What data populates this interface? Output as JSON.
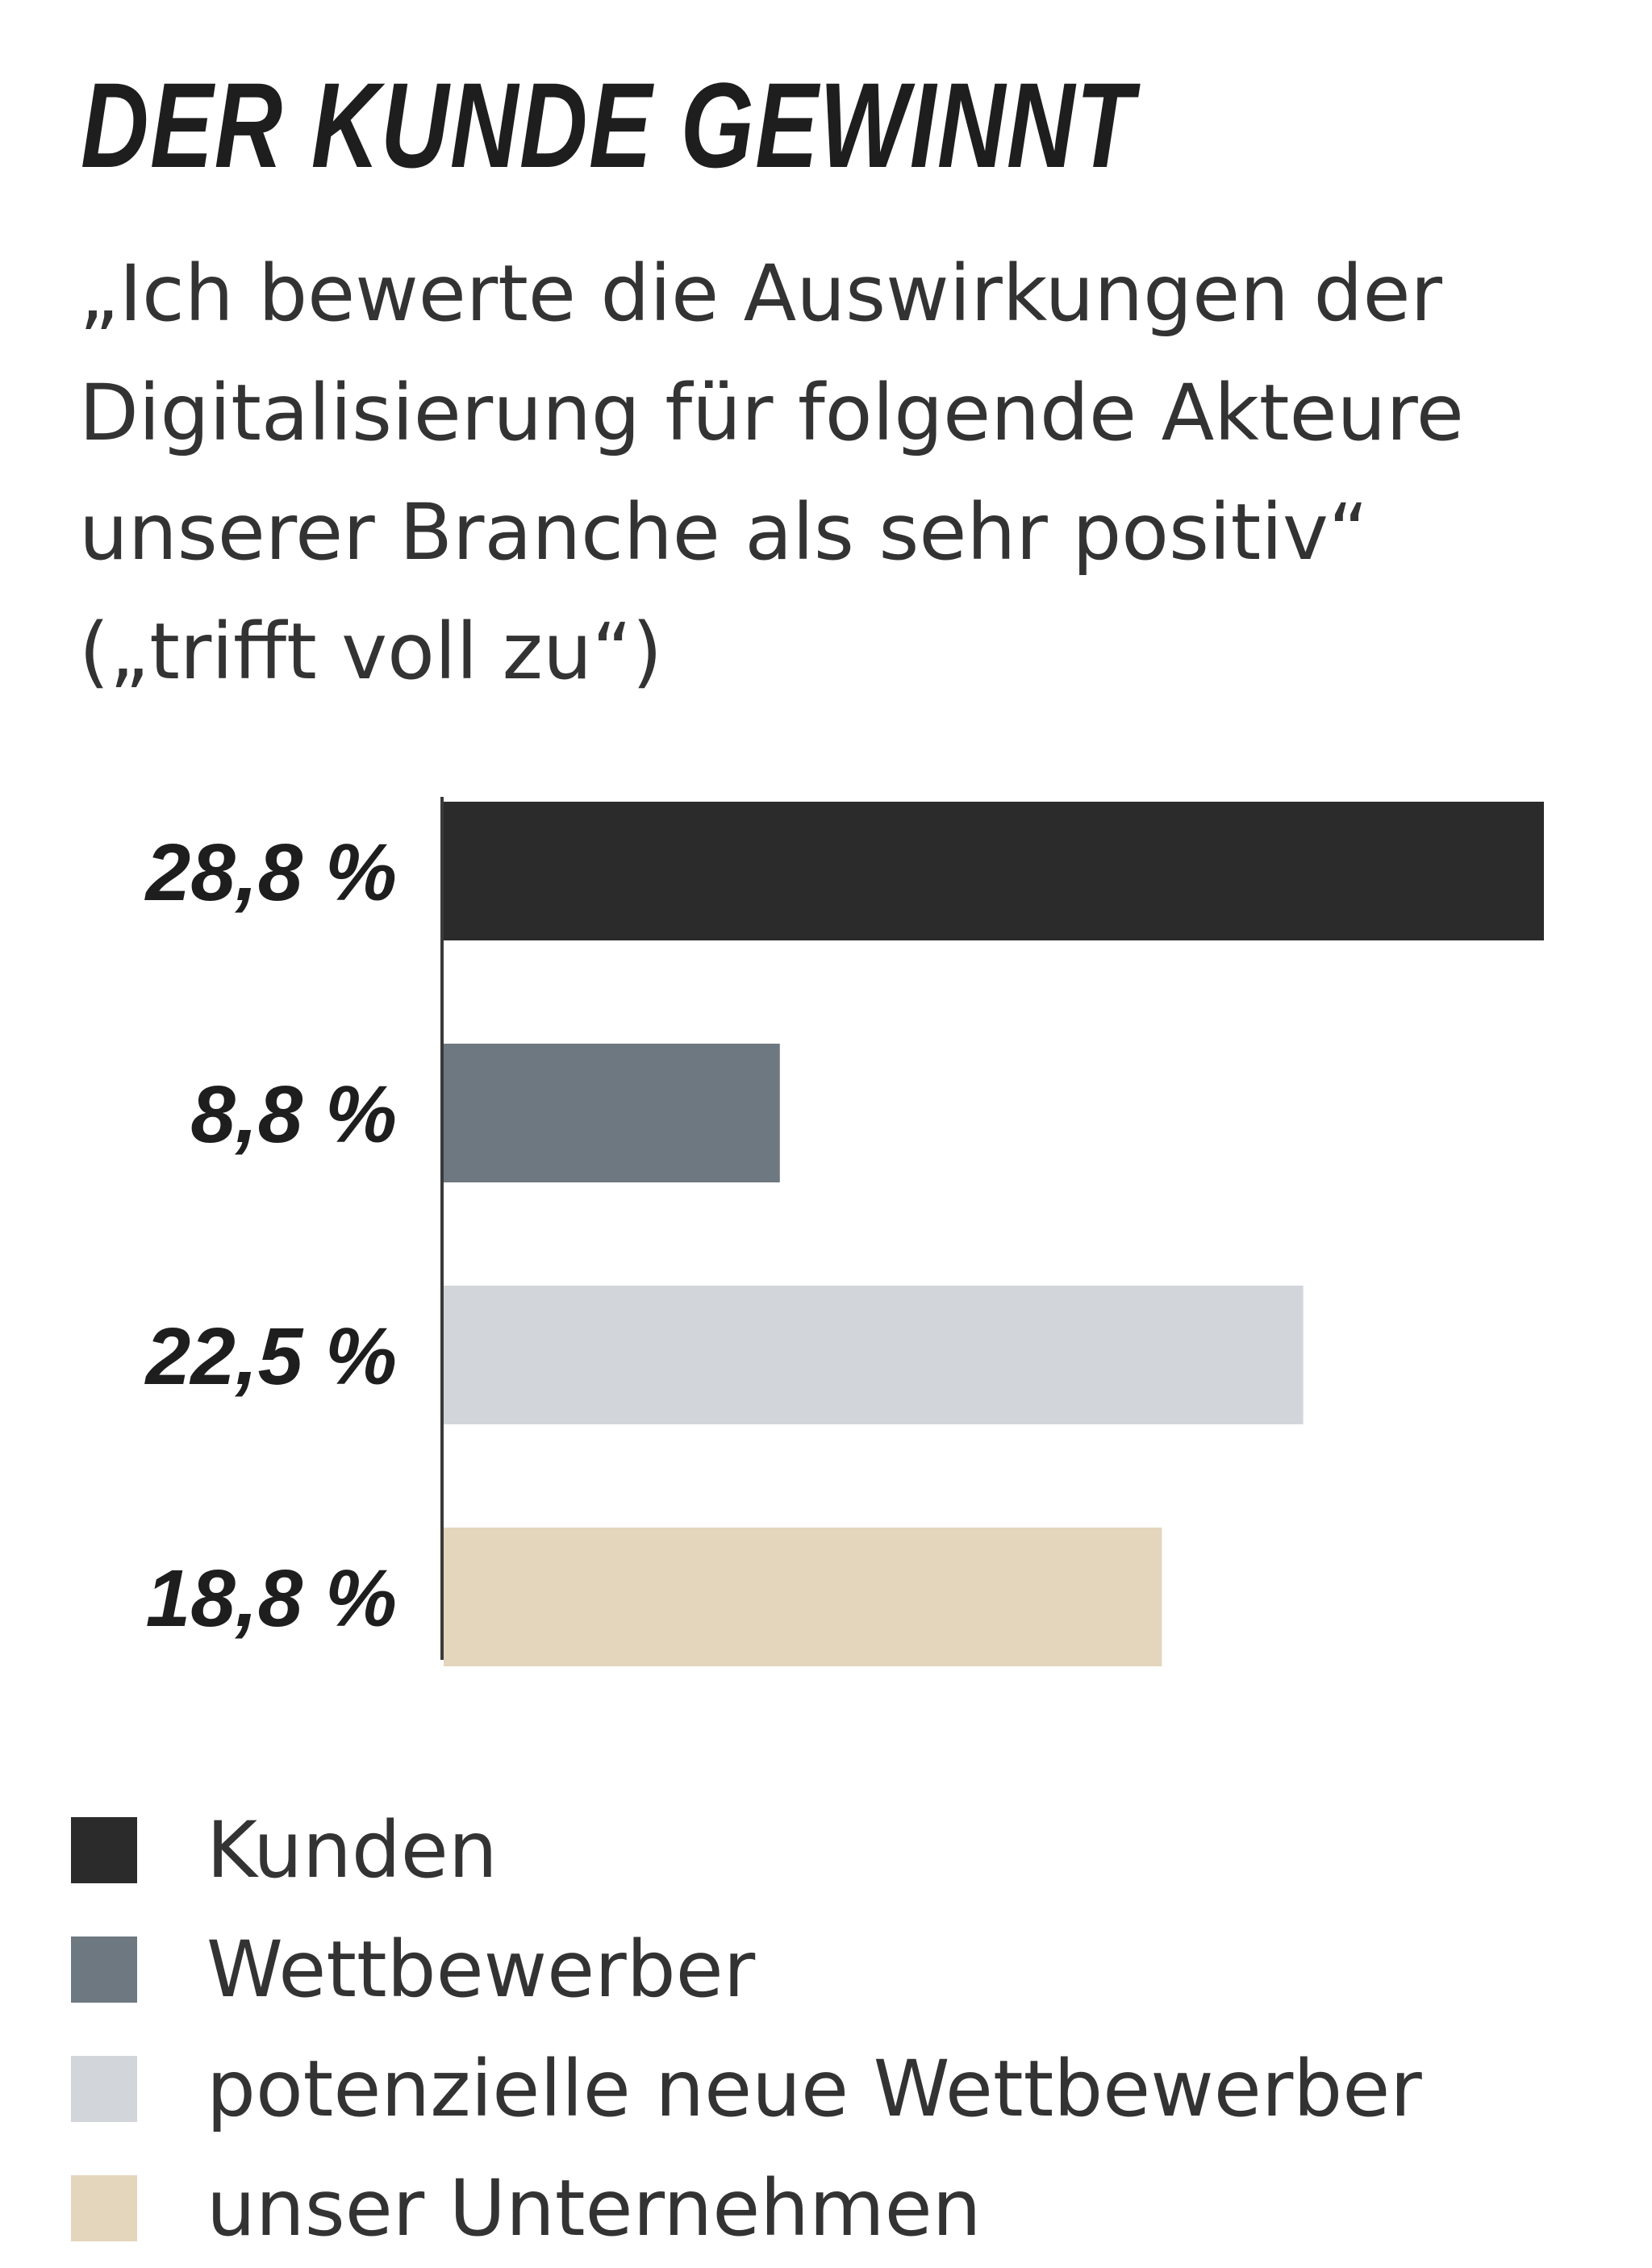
{
  "title": "DER KUNDE GEWINNT",
  "subtitle_lines": [
    "„Ich bewerte die Auswirkungen der",
    "Digitalisierung für folgende Akteure",
    "unserer Branche als sehr positiv“",
    "(„trifft voll zu“)"
  ],
  "colors": {
    "kunden": "#2b2b2b",
    "wettbewerber": "#6e7881",
    "potenzielle": "#d2d6da",
    "unternehmen": "#e3d6bd",
    "axis": "#3a3a3a"
  },
  "legend": [
    {
      "label": "Kunden",
      "color": "#2b2b2b"
    },
    {
      "label": "Wettbewerber",
      "color": "#6e7881"
    },
    {
      "label": "potenzielle neue Wettbewerber",
      "color": "#d2d6da"
    },
    {
      "label": "unser Unternehmen",
      "color": "#e3d6bd"
    }
  ],
  "chart_data": {
    "type": "bar",
    "orientation": "horizontal",
    "title": "DER KUNDE GEWINNT",
    "categories": [
      "Kunden",
      "Wettbewerber",
      "potenzielle neue Wettbewerber",
      "unser Unternehmen"
    ],
    "values": [
      28.8,
      8.8,
      22.5,
      18.8
    ],
    "value_labels": [
      "28,8 %",
      "8,8 %",
      "22,5 %",
      "18,8 %"
    ],
    "colors": [
      "#2b2b2b",
      "#6e7881",
      "#d2d6da",
      "#e3d6bd"
    ],
    "xlim": [
      0,
      28.8
    ],
    "grid": false,
    "legend_position": "bottom"
  }
}
